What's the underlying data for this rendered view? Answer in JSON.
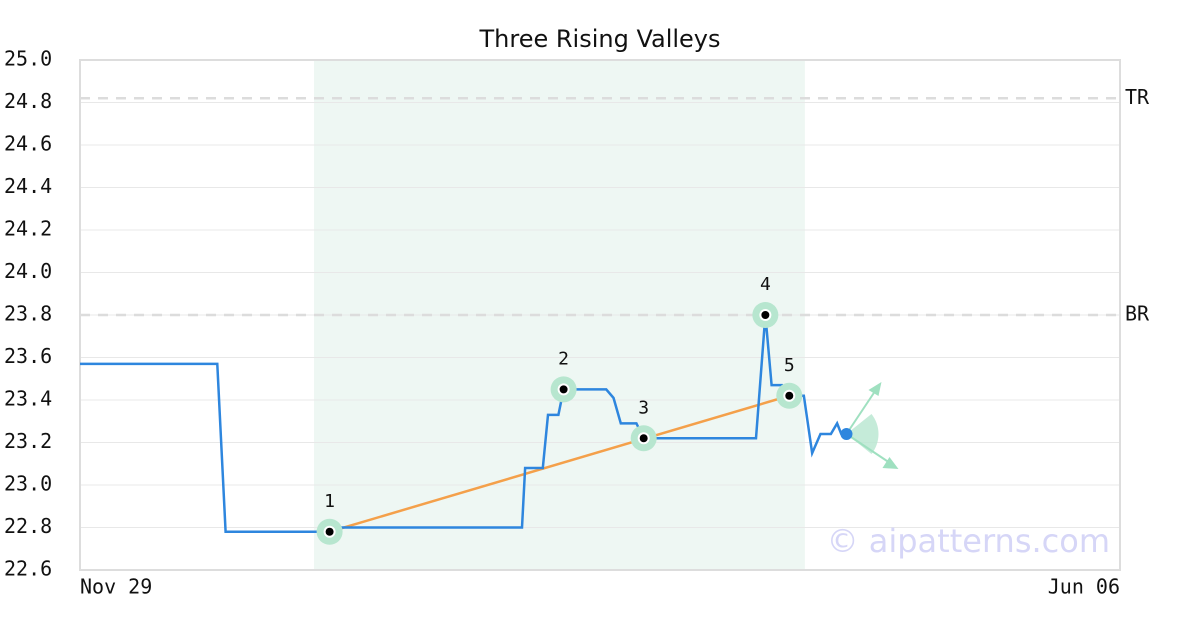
{
  "chart_data": {
    "type": "line",
    "title": "Three Rising Valleys",
    "xlim": [
      0,
      100
    ],
    "xticks": [
      {
        "value": 0,
        "label": "Nov 29"
      },
      {
        "value": 100,
        "label": "Jun 06"
      }
    ],
    "ylim": [
      22.6,
      25
    ],
    "yticks": [
      22.6,
      22.8,
      {
        "value": 23,
        "label": "23.0"
      },
      23.2,
      23.4,
      23.6,
      23.8,
      {
        "value": 24,
        "label": "24.0"
      },
      24.2,
      24.4,
      24.6,
      24.8,
      {
        "value": 25,
        "label": "25.0"
      }
    ],
    "grid": true,
    "series": [
      {
        "color": "#2e86de",
        "x": [
          0,
          13.2,
          14,
          24,
          24.5,
          42.5,
          42.8,
          44.5,
          45,
          46,
          46.5,
          50.6,
          51.3,
          52,
          53.5,
          54.2,
          65,
          65.9,
          66.5,
          67.5,
          68.2,
          69.6,
          70.4,
          71.2,
          72.2,
          72.8,
          73.2,
          73.7
        ],
        "values": [
          23.57,
          23.57,
          22.78,
          22.78,
          22.8,
          22.8,
          23.08,
          23.08,
          23.33,
          23.33,
          23.45,
          23.45,
          23.41,
          23.29,
          23.29,
          23.22,
          23.22,
          23.8,
          23.47,
          23.47,
          23.42,
          23.42,
          23.15,
          23.24,
          23.24,
          23.29,
          23.24,
          23.24
        ]
      }
    ],
    "highlight": [
      22.5,
      69.7
    ],
    "levels": [
      {
        "label": "TR",
        "value": 24.82
      },
      {
        "label": "BR",
        "value": 23.8
      }
    ],
    "points": [
      {
        "label": "1",
        "x": 24,
        "y": 22.78
      },
      {
        "label": "2",
        "x": 46.5,
        "y": 23.45
      },
      {
        "label": "3",
        "x": 54.2,
        "y": 23.22
      },
      {
        "label": "4",
        "x": 65.9,
        "y": 23.8
      },
      {
        "label": "5",
        "x": 68.2,
        "y": 23.42
      }
    ],
    "trend": {
      "color": "#f4a04a",
      "x": [
        24,
        68.2
      ],
      "y": [
        22.78,
        23.42
      ]
    },
    "current": {
      "x": 73.7,
      "y": 23.24,
      "color": "#2e86de"
    },
    "watermark": "© aipatterns.com"
  }
}
